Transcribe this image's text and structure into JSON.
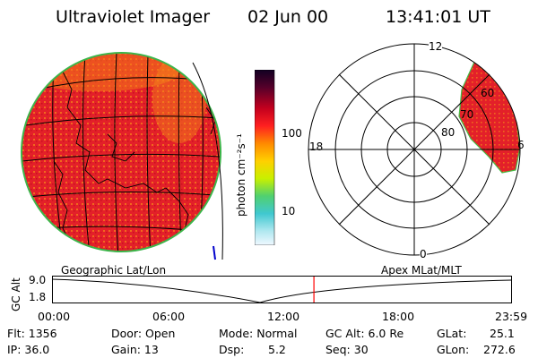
{
  "header": {
    "title": "Ultraviolet Imager",
    "date": "02 Jun 00",
    "time": "13:41:01 UT"
  },
  "colorbar": {
    "label": "photon cm⁻²s⁻¹",
    "ticks": [
      "100",
      "10"
    ]
  },
  "polar_plot": {
    "mlt_labels": {
      "top": "12",
      "left": "18",
      "bottom": "0",
      "right": "6"
    },
    "lat_labels": [
      "60",
      "70",
      "80"
    ]
  },
  "projection_labels": {
    "left": "Geographic Lat/Lon",
    "right": "Apex MLat/MLT"
  },
  "altitude_plot": {
    "ylabel": "GC Alt",
    "ytick_top": "9.0",
    "ytick_bottom": "1.8",
    "time_ticks": [
      "00:00",
      "06:00",
      "12:00",
      "18:00",
      "23:59"
    ],
    "current_marker_time": "13:41:01",
    "marker_color": "#ff0000"
  },
  "info": {
    "flt": "Flt: 1356",
    "ip": "IP: 36.0",
    "door": "Door: Open",
    "gain": "Gain: 13",
    "mode": "Mode: Normal",
    "dsp_label": "Dsp:",
    "dsp_value": "5.2",
    "gcalt": "GC Alt: 6.0 Re",
    "seq": "Seq: 30",
    "glat_label": "GLat:",
    "glat_value": "25.1",
    "glon_label": "GLon:",
    "glon_value": "272.6"
  },
  "colors": {
    "disk_fill": "#e8232c",
    "disk_light": "#f57a1a",
    "limb": "#44bb44"
  }
}
